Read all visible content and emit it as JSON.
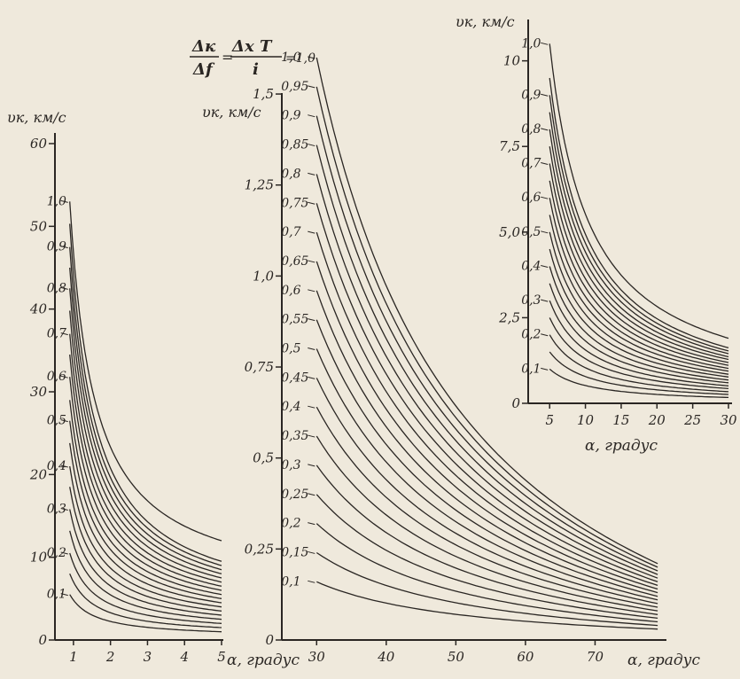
{
  "header": {
    "formula_lhs_num": "Δк",
    "formula_lhs_den": "Δf",
    "formula_eq": "=",
    "formula_rhs_num": "Δx T",
    "formula_rhs_den": "i",
    "formula_tail": "=1,0"
  },
  "chart_data": [
    {
      "id": "left",
      "type": "line",
      "ylabel": "υк, км/с",
      "xlabel": "α, градус",
      "xlim": [
        0.5,
        5
      ],
      "ylim": [
        0,
        60
      ],
      "xticks": [
        1,
        2,
        3,
        4,
        5
      ],
      "xtick_labels": [
        "1",
        "2",
        "3",
        "4",
        "5"
      ],
      "yticks": [
        0,
        10,
        20,
        30,
        40,
        50,
        60
      ],
      "ytick_labels": [
        "0",
        "10",
        "20",
        "30",
        "40",
        "50",
        "60"
      ],
      "curve_labels": [
        "0,1",
        "",
        "0,2",
        "",
        "0,3",
        "",
        "0,4",
        "",
        "0,5",
        "",
        "0,6",
        "",
        "0,7",
        "",
        "0,8",
        "",
        "0,9",
        "",
        "1,0"
      ],
      "series": [
        {
          "ratio": 0.1,
          "x": [
            0.9,
            5
          ],
          "y": [
            5.5,
            1.0
          ]
        },
        {
          "ratio": 0.15,
          "x": [
            0.9,
            5
          ],
          "y": [
            8.0,
            1.5
          ]
        },
        {
          "ratio": 0.2,
          "x": [
            0.9,
            5
          ],
          "y": [
            10.5,
            2.0
          ]
        },
        {
          "ratio": 0.25,
          "x": [
            0.9,
            5
          ],
          "y": [
            13.2,
            2.5
          ]
        },
        {
          "ratio": 0.3,
          "x": [
            0.9,
            5
          ],
          "y": [
            15.8,
            3.0
          ]
        },
        {
          "ratio": 0.35,
          "x": [
            0.9,
            5
          ],
          "y": [
            18.5,
            3.5
          ]
        },
        {
          "ratio": 0.4,
          "x": [
            0.9,
            5
          ],
          "y": [
            21.0,
            4.0
          ]
        },
        {
          "ratio": 0.45,
          "x": [
            0.9,
            5
          ],
          "y": [
            23.8,
            4.5
          ]
        },
        {
          "ratio": 0.5,
          "x": [
            0.9,
            5
          ],
          "y": [
            26.5,
            5.0
          ]
        },
        {
          "ratio": 0.55,
          "x": [
            0.9,
            5
          ],
          "y": [
            29.0,
            5.5
          ]
        },
        {
          "ratio": 0.6,
          "x": [
            0.9,
            5
          ],
          "y": [
            31.8,
            6.0
          ]
        },
        {
          "ratio": 0.65,
          "x": [
            0.9,
            5
          ],
          "y": [
            34.5,
            6.5
          ]
        },
        {
          "ratio": 0.7,
          "x": [
            0.9,
            5
          ],
          "y": [
            37.0,
            7.0
          ]
        },
        {
          "ratio": 0.75,
          "x": [
            0.9,
            5
          ],
          "y": [
            39.8,
            7.5
          ]
        },
        {
          "ratio": 0.8,
          "x": [
            0.9,
            5
          ],
          "y": [
            42.5,
            8.0
          ]
        },
        {
          "ratio": 0.85,
          "x": [
            0.9,
            5
          ],
          "y": [
            45.0,
            8.5
          ]
        },
        {
          "ratio": 0.9,
          "x": [
            0.9,
            5
          ],
          "y": [
            47.5,
            9.0
          ]
        },
        {
          "ratio": 0.95,
          "x": [
            0.9,
            5
          ],
          "y": [
            50.3,
            9.5
          ]
        },
        {
          "ratio": 1.0,
          "x": [
            0.9,
            5
          ],
          "y": [
            53.0,
            12.0
          ]
        }
      ]
    },
    {
      "id": "middle",
      "type": "line",
      "ylabel": "υк, км/с",
      "xlabel": "α, градус",
      "xlim": [
        25,
        80
      ],
      "ylim": [
        0,
        1.6
      ],
      "xticks": [
        30,
        40,
        50,
        60,
        70
      ],
      "xtick_labels": [
        "30",
        "40",
        "50",
        "60",
        "70"
      ],
      "yticks": [
        0,
        0.25,
        0.5,
        0.75,
        1.0,
        1.25,
        1.5
      ],
      "ytick_labels": [
        "0",
        "0,25",
        "0,5",
        "0,75",
        "1,0",
        "1,25",
        "1,5"
      ],
      "curve_labels": [
        "0,1",
        "0,15",
        "0,2",
        "0,25",
        "0,3",
        "0,35",
        "0,4",
        "0,45",
        "0,5",
        "0,55",
        "0,6",
        "0,65",
        "0,7",
        "0,75",
        "0,8",
        "0,85",
        "0,9",
        "0,95",
        "1,0"
      ],
      "series": [
        {
          "ratio": 0.1,
          "x": [
            30,
            79
          ],
          "y": [
            0.16,
            0.03
          ]
        },
        {
          "ratio": 0.15,
          "x": [
            30,
            79
          ],
          "y": [
            0.24,
            0.04
          ]
        },
        {
          "ratio": 0.2,
          "x": [
            30,
            79
          ],
          "y": [
            0.32,
            0.05
          ]
        },
        {
          "ratio": 0.25,
          "x": [
            30,
            79
          ],
          "y": [
            0.4,
            0.06
          ]
        },
        {
          "ratio": 0.3,
          "x": [
            30,
            79
          ],
          "y": [
            0.48,
            0.07
          ]
        },
        {
          "ratio": 0.35,
          "x": [
            30,
            79
          ],
          "y": [
            0.56,
            0.08
          ]
        },
        {
          "ratio": 0.4,
          "x": [
            30,
            79
          ],
          "y": [
            0.64,
            0.09
          ]
        },
        {
          "ratio": 0.45,
          "x": [
            30,
            79
          ],
          "y": [
            0.72,
            0.1
          ]
        },
        {
          "ratio": 0.5,
          "x": [
            30,
            79
          ],
          "y": [
            0.8,
            0.11
          ]
        },
        {
          "ratio": 0.55,
          "x": [
            30,
            79
          ],
          "y": [
            0.88,
            0.12
          ]
        },
        {
          "ratio": 0.6,
          "x": [
            30,
            79
          ],
          "y": [
            0.96,
            0.13
          ]
        },
        {
          "ratio": 0.65,
          "x": [
            30,
            79
          ],
          "y": [
            1.04,
            0.14
          ]
        },
        {
          "ratio": 0.7,
          "x": [
            30,
            79
          ],
          "y": [
            1.12,
            0.15
          ]
        },
        {
          "ratio": 0.75,
          "x": [
            30,
            79
          ],
          "y": [
            1.2,
            0.16
          ]
        },
        {
          "ratio": 0.8,
          "x": [
            30,
            79
          ],
          "y": [
            1.28,
            0.17
          ]
        },
        {
          "ratio": 0.85,
          "x": [
            30,
            79
          ],
          "y": [
            1.36,
            0.18
          ]
        },
        {
          "ratio": 0.9,
          "x": [
            30,
            79
          ],
          "y": [
            1.44,
            0.19
          ]
        },
        {
          "ratio": 0.95,
          "x": [
            30,
            79
          ],
          "y": [
            1.52,
            0.2
          ]
        },
        {
          "ratio": 1.0,
          "x": [
            30,
            79
          ],
          "y": [
            1.6,
            0.21
          ]
        }
      ]
    },
    {
      "id": "right",
      "type": "line",
      "ylabel": "υк, км/с",
      "xlabel": "α, градус",
      "xlim": [
        2,
        30
      ],
      "ylim": [
        0,
        11
      ],
      "xticks": [
        5,
        10,
        15,
        20,
        25,
        30
      ],
      "xtick_labels": [
        "5",
        "10",
        "15",
        "20",
        "25",
        "30"
      ],
      "yticks": [
        0,
        2.5,
        5.0,
        7.5,
        10
      ],
      "ytick_labels": [
        "0",
        "2,5",
        "5,0",
        "7,5",
        "10"
      ],
      "curve_labels": [
        "0,1",
        "",
        "0,2",
        "",
        "0,3",
        "",
        "0,4",
        "",
        "0,5",
        "",
        "0,6",
        "",
        "0,7",
        "",
        "0,8",
        "",
        "0,9",
        "",
        "1,0"
      ],
      "series": [
        {
          "ratio": 0.1,
          "x": [
            5,
            30
          ],
          "y": [
            1.0,
            0.17
          ]
        },
        {
          "ratio": 0.15,
          "x": [
            5,
            30
          ],
          "y": [
            1.5,
            0.26
          ]
        },
        {
          "ratio": 0.2,
          "x": [
            5,
            30
          ],
          "y": [
            2.0,
            0.34
          ]
        },
        {
          "ratio": 0.25,
          "x": [
            5,
            30
          ],
          "y": [
            2.5,
            0.43
          ]
        },
        {
          "ratio": 0.3,
          "x": [
            5,
            30
          ],
          "y": [
            3.0,
            0.51
          ]
        },
        {
          "ratio": 0.35,
          "x": [
            5,
            30
          ],
          "y": [
            3.5,
            0.6
          ]
        },
        {
          "ratio": 0.4,
          "x": [
            5,
            30
          ],
          "y": [
            4.0,
            0.68
          ]
        },
        {
          "ratio": 0.45,
          "x": [
            5,
            30
          ],
          "y": [
            4.5,
            0.77
          ]
        },
        {
          "ratio": 0.5,
          "x": [
            5,
            30
          ],
          "y": [
            5.0,
            0.85
          ]
        },
        {
          "ratio": 0.55,
          "x": [
            5,
            30
          ],
          "y": [
            5.5,
            0.94
          ]
        },
        {
          "ratio": 0.6,
          "x": [
            5,
            30
          ],
          "y": [
            6.0,
            1.02
          ]
        },
        {
          "ratio": 0.65,
          "x": [
            5,
            30
          ],
          "y": [
            6.5,
            1.11
          ]
        },
        {
          "ratio": 0.7,
          "x": [
            5,
            30
          ],
          "y": [
            7.0,
            1.19
          ]
        },
        {
          "ratio": 0.75,
          "x": [
            5,
            30
          ],
          "y": [
            7.5,
            1.28
          ]
        },
        {
          "ratio": 0.8,
          "x": [
            5,
            30
          ],
          "y": [
            8.0,
            1.36
          ]
        },
        {
          "ratio": 0.85,
          "x": [
            5,
            30
          ],
          "y": [
            8.5,
            1.45
          ]
        },
        {
          "ratio": 0.9,
          "x": [
            5,
            30
          ],
          "y": [
            9.0,
            1.53
          ]
        },
        {
          "ratio": 0.95,
          "x": [
            5,
            30
          ],
          "y": [
            9.5,
            1.62
          ]
        },
        {
          "ratio": 1.0,
          "x": [
            5,
            30
          ],
          "y": [
            10.5,
            1.9
          ]
        }
      ]
    }
  ]
}
